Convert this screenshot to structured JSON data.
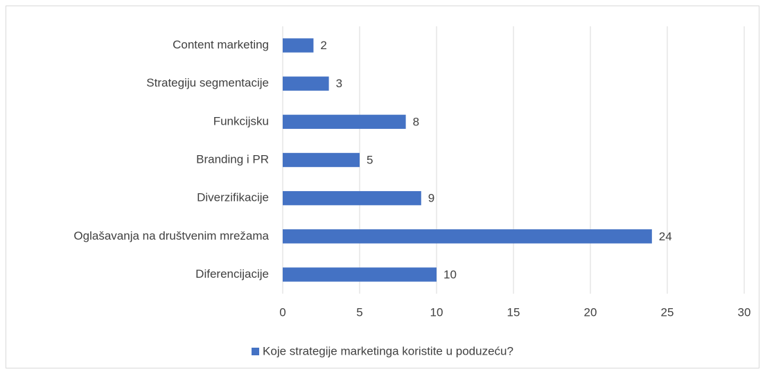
{
  "chart_data": {
    "type": "bar",
    "orientation": "horizontal",
    "categories": [
      "Content marketing",
      "Strategiju segmentacije",
      "Funkcijsku",
      "Branding i PR",
      "Diverzifikacije",
      "Oglašavanja na društvenim mrežama",
      "Diferencijacije"
    ],
    "series": [
      {
        "name": "Koje strategije marketinga koristite u poduzeću?",
        "color": "#4472c4",
        "values": [
          2,
          3,
          8,
          5,
          9,
          24,
          10
        ]
      }
    ],
    "xlim": [
      0,
      30
    ],
    "xticks": [
      0,
      5,
      10,
      15,
      20,
      25,
      30
    ],
    "grid": true,
    "legend": "bottom",
    "data_labels": true
  }
}
